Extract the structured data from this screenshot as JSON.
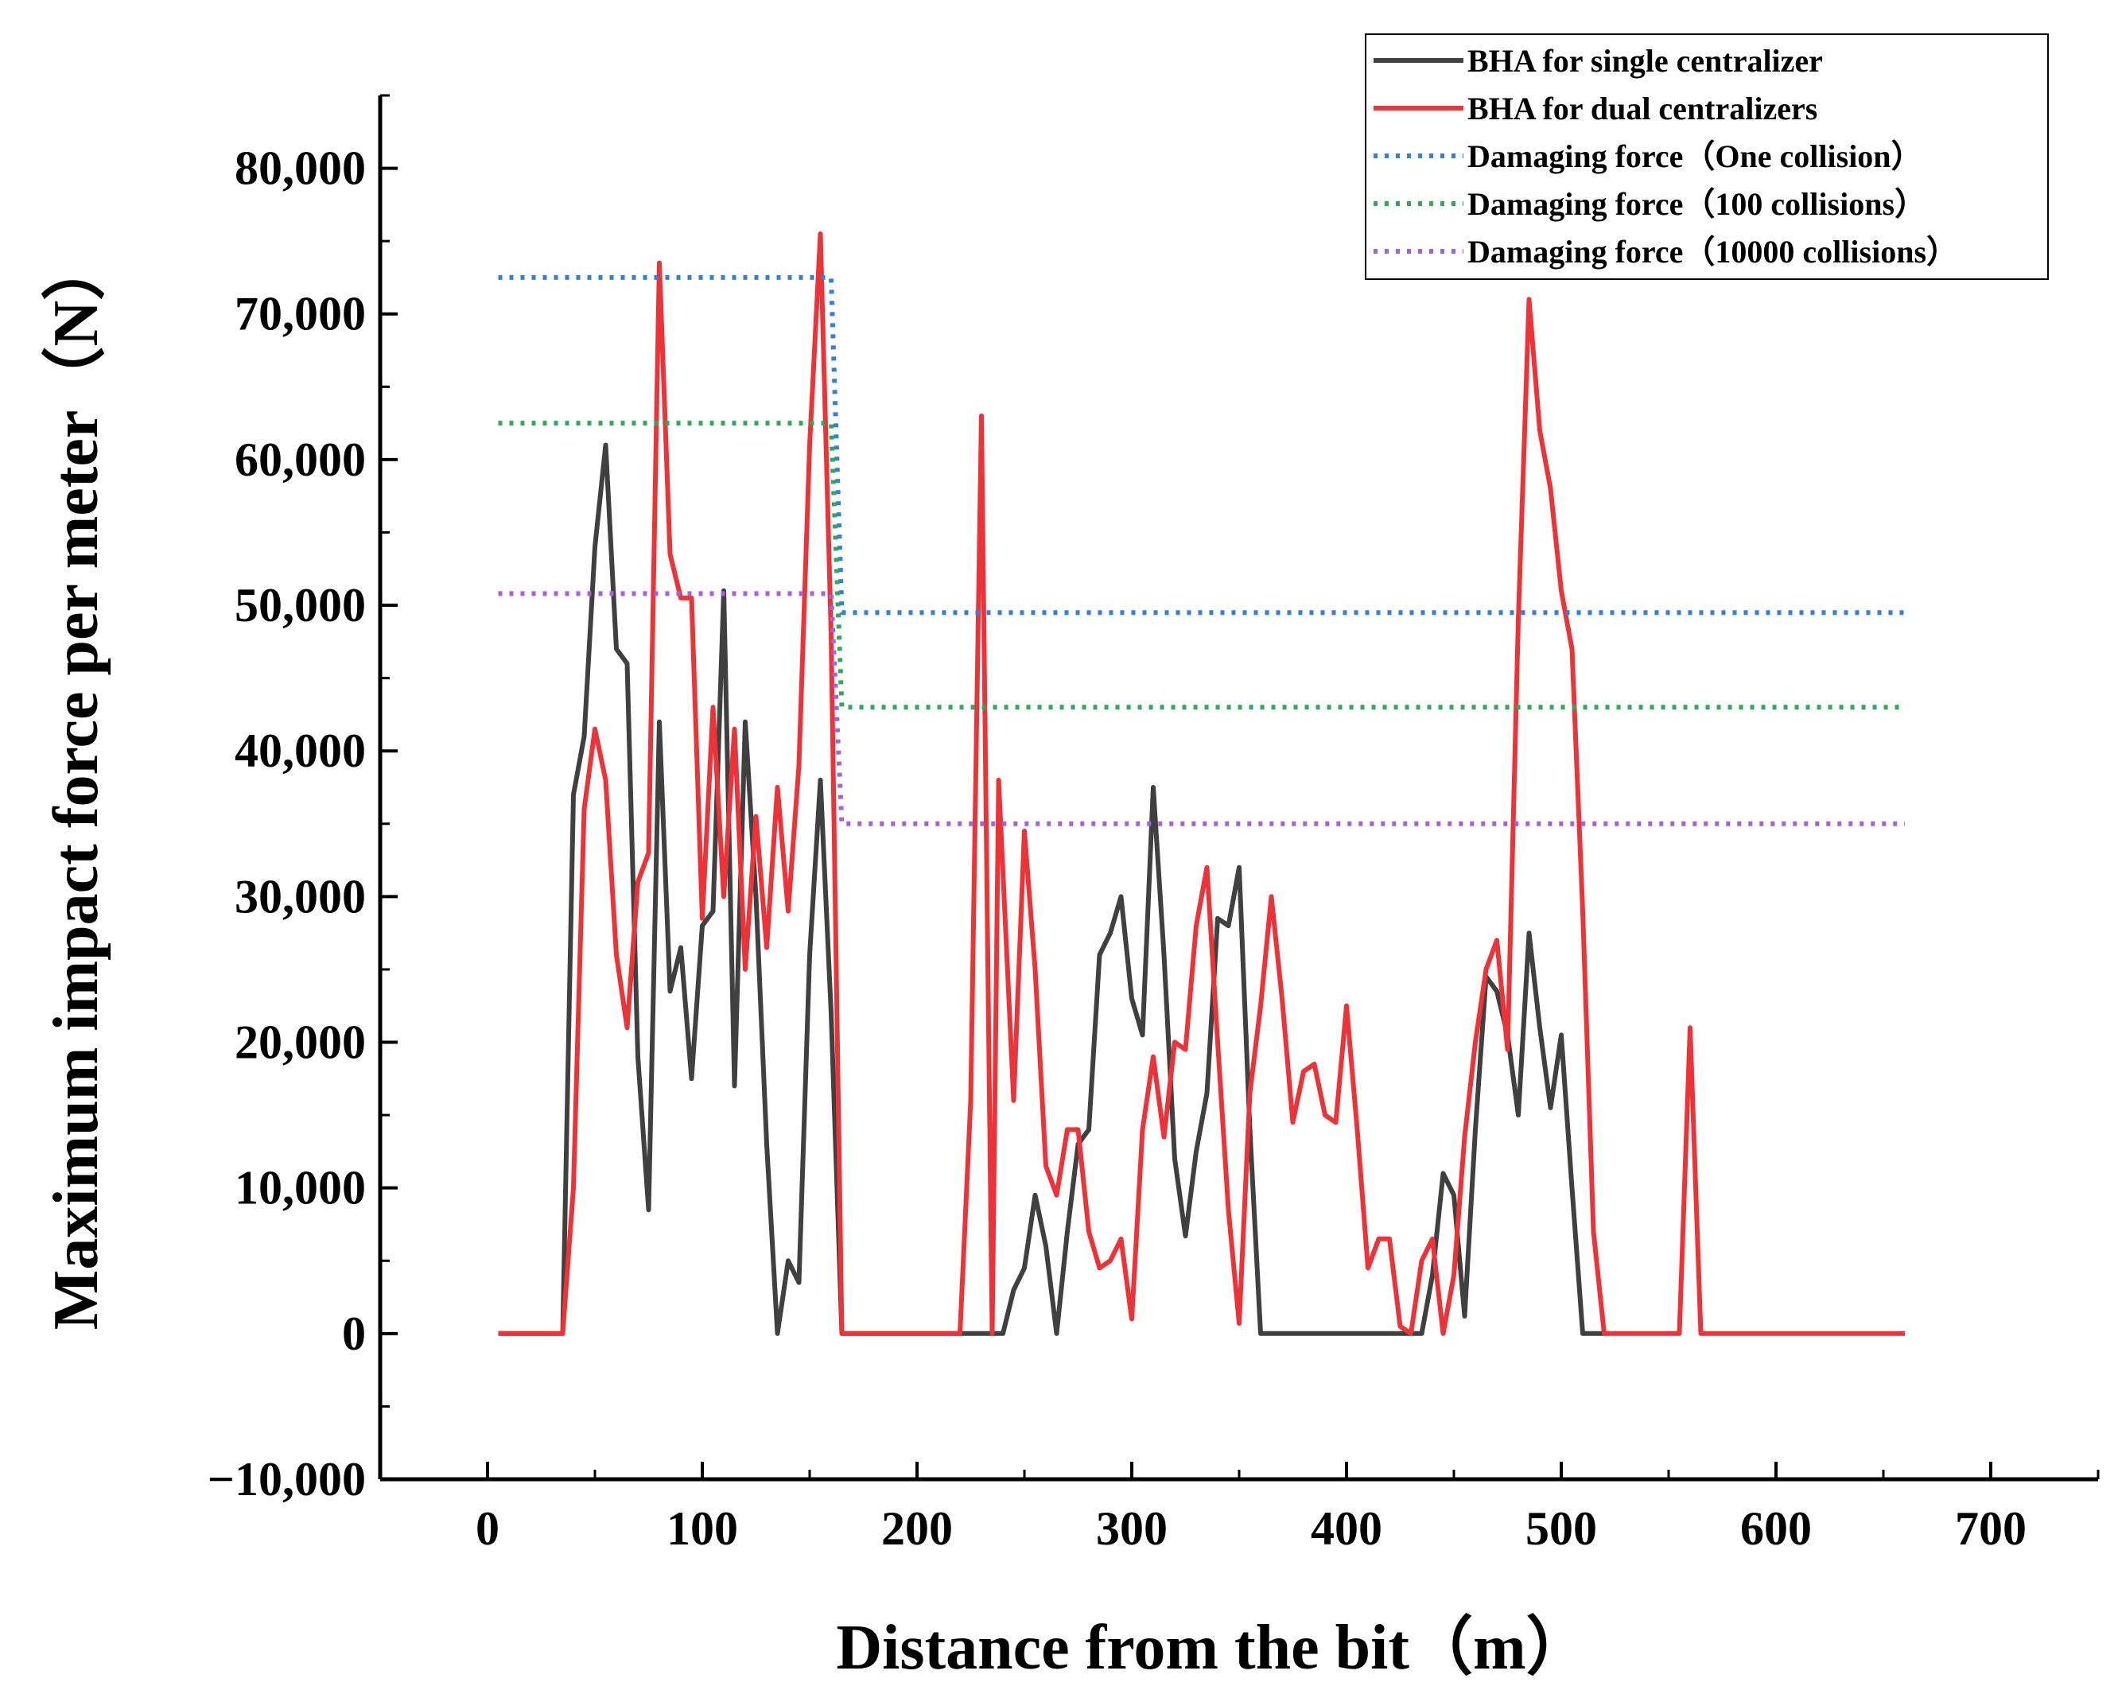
{
  "chart_data": {
    "type": "line",
    "title": "",
    "xlabel": "Distance from the bit（m）",
    "ylabel": "Maximum impact force per meter（N）",
    "xlim": [
      -50,
      750
    ],
    "ylim": [
      -10000,
      85000
    ],
    "x_ticks": [
      0,
      100,
      200,
      300,
      400,
      500,
      600,
      700
    ],
    "x_tick_labels": [
      "0",
      "100",
      "200",
      "300",
      "400",
      "500",
      "600",
      "700"
    ],
    "y_ticks": [
      -10000,
      0,
      10000,
      20000,
      30000,
      40000,
      50000,
      60000,
      70000,
      80000
    ],
    "y_tick_labels": [
      "−10,000",
      "0",
      "10,000",
      "20,000",
      "30,000",
      "40,000",
      "50,000",
      "60,000",
      "70,000",
      "80,000"
    ],
    "legend_position": "top-right",
    "series": [
      {
        "name": "BHA for single centralizer",
        "color": "#404040",
        "style": "solid",
        "points": [
          [
            5,
            0
          ],
          [
            35,
            0
          ],
          [
            40,
            37000
          ],
          [
            45,
            41000
          ],
          [
            50,
            54000
          ],
          [
            55,
            61000
          ],
          [
            60,
            47000
          ],
          [
            65,
            46000
          ],
          [
            70,
            19000
          ],
          [
            75,
            8500
          ],
          [
            80,
            42000
          ],
          [
            85,
            23500
          ],
          [
            90,
            26500
          ],
          [
            95,
            17500
          ],
          [
            100,
            28000
          ],
          [
            105,
            29000
          ],
          [
            110,
            51000
          ],
          [
            115,
            17000
          ],
          [
            120,
            42000
          ],
          [
            125,
            30000
          ],
          [
            130,
            13000
          ],
          [
            135,
            0
          ],
          [
            140,
            5000
          ],
          [
            145,
            3500
          ],
          [
            150,
            26000
          ],
          [
            155,
            38000
          ],
          [
            160,
            22000
          ],
          [
            165,
            0
          ],
          [
            220,
            0
          ],
          [
            235,
            0
          ],
          [
            240,
            0
          ],
          [
            245,
            3000
          ],
          [
            250,
            4500
          ],
          [
            255,
            9500
          ],
          [
            260,
            6000
          ],
          [
            265,
            0
          ],
          [
            270,
            7000
          ],
          [
            275,
            13000
          ],
          [
            280,
            14000
          ],
          [
            285,
            26000
          ],
          [
            290,
            27500
          ],
          [
            295,
            30000
          ],
          [
            300,
            23000
          ],
          [
            305,
            20500
          ],
          [
            310,
            37500
          ],
          [
            315,
            26000
          ],
          [
            320,
            12000
          ],
          [
            325,
            6700
          ],
          [
            330,
            12500
          ],
          [
            335,
            16500
          ],
          [
            340,
            28500
          ],
          [
            345,
            28000
          ],
          [
            350,
            32000
          ],
          [
            355,
            14000
          ],
          [
            360,
            0
          ],
          [
            430,
            0
          ],
          [
            435,
            0
          ],
          [
            440,
            4000
          ],
          [
            445,
            11000
          ],
          [
            450,
            9500
          ],
          [
            455,
            1200
          ],
          [
            460,
            14000
          ],
          [
            465,
            24500
          ],
          [
            470,
            23500
          ],
          [
            475,
            20500
          ],
          [
            480,
            15000
          ],
          [
            485,
            27500
          ],
          [
            490,
            21000
          ],
          [
            495,
            15500
          ],
          [
            500,
            20500
          ],
          [
            505,
            10000
          ],
          [
            510,
            0
          ],
          [
            520,
            0
          ]
        ]
      },
      {
        "name": "BHA for dual centralizers",
        "color": "#ee3338",
        "style": "solid",
        "points": [
          [
            5,
            0
          ],
          [
            35,
            0
          ],
          [
            40,
            10000
          ],
          [
            45,
            36000
          ],
          [
            50,
            41500
          ],
          [
            55,
            38000
          ],
          [
            60,
            26000
          ],
          [
            65,
            21000
          ],
          [
            70,
            31000
          ],
          [
            75,
            33000
          ],
          [
            80,
            73500
          ],
          [
            85,
            53500
          ],
          [
            90,
            50500
          ],
          [
            95,
            50500
          ],
          [
            100,
            28500
          ],
          [
            105,
            43000
          ],
          [
            110,
            30000
          ],
          [
            115,
            41500
          ],
          [
            120,
            25000
          ],
          [
            125,
            35500
          ],
          [
            130,
            26500
          ],
          [
            135,
            37500
          ],
          [
            140,
            29000
          ],
          [
            145,
            39000
          ],
          [
            150,
            61000
          ],
          [
            155,
            75500
          ],
          [
            160,
            48000
          ],
          [
            165,
            0
          ],
          [
            220,
            0
          ],
          [
            225,
            16000
          ],
          [
            230,
            63000
          ],
          [
            235,
            0
          ],
          [
            238,
            38000
          ],
          [
            245,
            16000
          ],
          [
            250,
            34500
          ],
          [
            255,
            25000
          ],
          [
            260,
            11500
          ],
          [
            265,
            9500
          ],
          [
            270,
            14000
          ],
          [
            275,
            14000
          ],
          [
            280,
            7000
          ],
          [
            285,
            4500
          ],
          [
            290,
            5000
          ],
          [
            295,
            6500
          ],
          [
            300,
            1000
          ],
          [
            305,
            14000
          ],
          [
            310,
            19000
          ],
          [
            315,
            13500
          ],
          [
            320,
            20000
          ],
          [
            325,
            19500
          ],
          [
            330,
            28000
          ],
          [
            335,
            32000
          ],
          [
            340,
            20000
          ],
          [
            345,
            8500
          ],
          [
            350,
            700
          ],
          [
            355,
            16500
          ],
          [
            360,
            22500
          ],
          [
            365,
            30000
          ],
          [
            370,
            23000
          ],
          [
            375,
            14500
          ],
          [
            380,
            18000
          ],
          [
            385,
            18500
          ],
          [
            390,
            15000
          ],
          [
            395,
            14500
          ],
          [
            400,
            22500
          ],
          [
            405,
            14000
          ],
          [
            410,
            4500
          ],
          [
            415,
            6500
          ],
          [
            420,
            6500
          ],
          [
            425,
            500
          ],
          [
            430,
            0
          ],
          [
            435,
            5000
          ],
          [
            440,
            6500
          ],
          [
            445,
            0
          ],
          [
            450,
            4000
          ],
          [
            455,
            13500
          ],
          [
            460,
            20000
          ],
          [
            465,
            25000
          ],
          [
            470,
            27000
          ],
          [
            475,
            19500
          ],
          [
            480,
            49000
          ],
          [
            485,
            71000
          ],
          [
            490,
            62000
          ],
          [
            495,
            58000
          ],
          [
            500,
            51000
          ],
          [
            505,
            47000
          ],
          [
            510,
            29000
          ],
          [
            515,
            7000
          ],
          [
            520,
            0
          ],
          [
            555,
            0
          ],
          [
            560,
            21000
          ],
          [
            565,
            0
          ],
          [
            660,
            0
          ]
        ]
      },
      {
        "name": "Damaging force（One collision）",
        "color": "#2f7fe8",
        "style": "dotted",
        "points": [
          [
            5,
            72500
          ],
          [
            160,
            72500
          ],
          [
            165,
            49500
          ],
          [
            660,
            49500
          ]
        ]
      },
      {
        "name": "Damaging force（100 collisions）",
        "color": "#2eaa5a",
        "style": "dotted",
        "points": [
          [
            5,
            62500
          ],
          [
            160,
            62500
          ],
          [
            165,
            43000
          ],
          [
            660,
            43000
          ]
        ]
      },
      {
        "name": "Damaging force（10000 collisions）",
        "color": "#a760e0",
        "style": "dotted",
        "points": [
          [
            5,
            50800
          ],
          [
            160,
            50800
          ],
          [
            165,
            35000
          ],
          [
            660,
            35000
          ]
        ]
      }
    ]
  }
}
